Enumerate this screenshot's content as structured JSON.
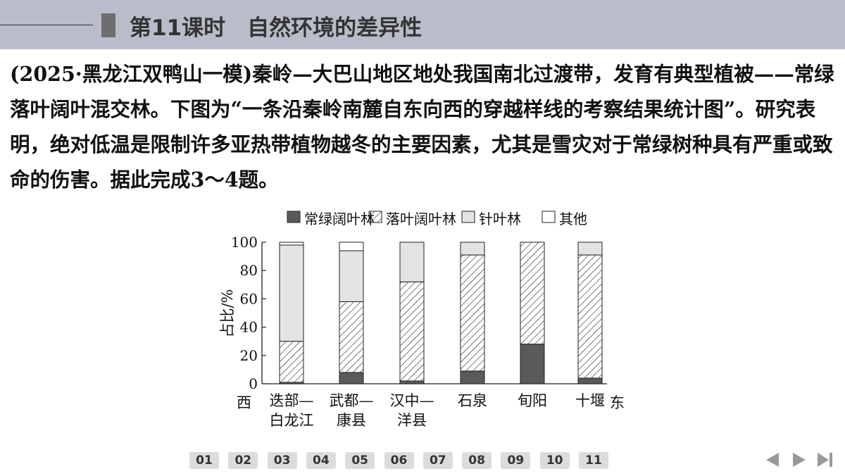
{
  "header": {
    "title": "第11课时　自然环境的差异性"
  },
  "question": "(2025·黑龙江双鸭山一模)秦岭—大巴山地区地处我国南北过渡带，发育有典型植被——常绿落叶阔叶混交林。下图为“一条沿秦岭南麓自东向西的穿越样线的考察结果统计图”。研究表明，绝对低温是限制许多亚热带植物越冬的主要因素，尤其是雪灾对于常绿树种具有严重或致命的伤害。据此完成3～4题。",
  "chart_data": {
    "type": "stacked_bar",
    "y_label": "占比/%",
    "x_start_label": "西",
    "x_end_label": "东",
    "categories": [
      "迭部—白龙江",
      "武都—康县",
      "汉中—洋县",
      "石泉",
      "旬阳",
      "十堰"
    ],
    "series": [
      {
        "name": "常绿阔叶林",
        "color": "#5a5a5a",
        "values": [
          1,
          8,
          2,
          9,
          28,
          4
        ]
      },
      {
        "name": "落叶阔叶林",
        "color": "#ffffff",
        "hatch": true,
        "values": [
          29,
          50,
          70,
          82,
          72,
          87
        ]
      },
      {
        "name": "针叶林",
        "color": "#e3e3e3",
        "values": [
          68,
          36,
          28,
          9,
          0,
          9
        ]
      },
      {
        "name": "其他",
        "color": "#ffffff",
        "values": [
          2,
          6,
          0,
          0,
          0,
          0
        ]
      }
    ],
    "ylim": [
      0,
      100
    ],
    "yticks": [
      0,
      20,
      40,
      60,
      80,
      100
    ]
  },
  "navigation": [
    "01",
    "02",
    "03",
    "04",
    "05",
    "06",
    "07",
    "08",
    "09",
    "10",
    "11"
  ]
}
